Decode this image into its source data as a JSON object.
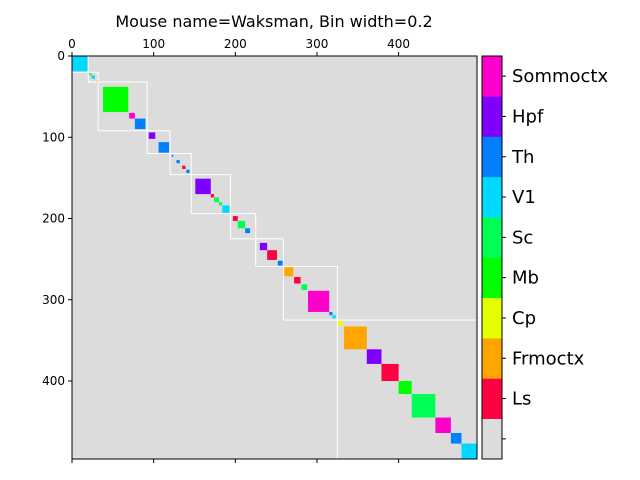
{
  "chart_data": {
    "type": "heatmap",
    "title": "Mouse name=Waksman, Bin width=0.2",
    "xlabel": "",
    "ylabel": "",
    "xlim": [
      0,
      496
    ],
    "ylim": [
      496,
      0
    ],
    "x_ticks": [
      0,
      100,
      200,
      300,
      400
    ],
    "y_ticks": [
      0,
      100,
      200,
      300,
      400
    ],
    "background_color": "#dcdcdc",
    "colorbar": {
      "labels": [
        "",
        "Ls",
        "Frmoctx",
        "Cp",
        "Mb",
        "Sc",
        "V1",
        "Th",
        "Hpf",
        "Sommoctx"
      ],
      "colors": [
        "#dcdcdc",
        "#ff0040",
        "#ffa500",
        "#e6ff00",
        "#00ff00",
        "#00ff55",
        "#00d8ff",
        "#0080ff",
        "#8000ff",
        "#ff00cc"
      ]
    },
    "blocks": [
      {
        "start": 0,
        "end": 19,
        "region": "V1"
      },
      {
        "start": 21,
        "end": 24,
        "region": "Sc"
      },
      {
        "start": 24,
        "end": 28,
        "region": "V1"
      },
      {
        "start": 30,
        "end": 33,
        "region": "Frmoctx"
      },
      {
        "start": 38,
        "end": 69,
        "region": "Mb"
      },
      {
        "start": 70,
        "end": 77,
        "region": "Sommoctx"
      },
      {
        "start": 77,
        "end": 90,
        "region": "Th"
      },
      {
        "start": 94,
        "end": 102,
        "region": "Hpf"
      },
      {
        "start": 106,
        "end": 119,
        "region": "Th"
      },
      {
        "start": 122,
        "end": 124,
        "region": "Th"
      },
      {
        "start": 128,
        "end": 132,
        "region": "Th"
      },
      {
        "start": 135,
        "end": 139,
        "region": "Ls"
      },
      {
        "start": 140,
        "end": 144,
        "region": "Th"
      },
      {
        "start": 151,
        "end": 170,
        "region": "Hpf"
      },
      {
        "start": 170,
        "end": 174,
        "region": "Ls"
      },
      {
        "start": 174,
        "end": 180,
        "region": "Sc"
      },
      {
        "start": 180,
        "end": 184,
        "region": "Sc"
      },
      {
        "start": 184,
        "end": 193,
        "region": "V1"
      },
      {
        "start": 197,
        "end": 203,
        "region": "Ls"
      },
      {
        "start": 203,
        "end": 212,
        "region": "Sc"
      },
      {
        "start": 212,
        "end": 218,
        "region": "Th"
      },
      {
        "start": 230,
        "end": 239,
        "region": "Hpf"
      },
      {
        "start": 239,
        "end": 251,
        "region": "Ls"
      },
      {
        "start": 252,
        "end": 258,
        "region": "Th"
      },
      {
        "start": 260,
        "end": 271,
        "region": "Frmoctx"
      },
      {
        "start": 272,
        "end": 280,
        "region": "Ls"
      },
      {
        "start": 281,
        "end": 288,
        "region": "Sc"
      },
      {
        "start": 289,
        "end": 315,
        "region": "Sommoctx"
      },
      {
        "start": 315,
        "end": 319,
        "region": "Th"
      },
      {
        "start": 319,
        "end": 323,
        "region": "V1"
      },
      {
        "start": 326,
        "end": 332,
        "region": "Cp"
      },
      {
        "start": 333,
        "end": 361,
        "region": "Frmoctx"
      },
      {
        "start": 361,
        "end": 379,
        "region": "Hpf"
      },
      {
        "start": 379,
        "end": 400,
        "region": "Ls"
      },
      {
        "start": 400,
        "end": 416,
        "region": "Mb"
      },
      {
        "start": 416,
        "end": 445,
        "region": "Sc"
      },
      {
        "start": 445,
        "end": 464,
        "region": "Sommoctx"
      },
      {
        "start": 464,
        "end": 477,
        "region": "Th"
      },
      {
        "start": 477,
        "end": 496,
        "region": "V1"
      }
    ],
    "clusters": [
      {
        "start": 0,
        "end": 20
      },
      {
        "start": 20,
        "end": 32
      },
      {
        "start": 32,
        "end": 92
      },
      {
        "start": 92,
        "end": 120
      },
      {
        "start": 120,
        "end": 146
      },
      {
        "start": 146,
        "end": 194
      },
      {
        "start": 194,
        "end": 225
      },
      {
        "start": 225,
        "end": 259
      },
      {
        "start": 259,
        "end": 325
      },
      {
        "start": 325,
        "end": 496
      }
    ],
    "cluster_line_color": "#ffffff",
    "grid": false
  }
}
